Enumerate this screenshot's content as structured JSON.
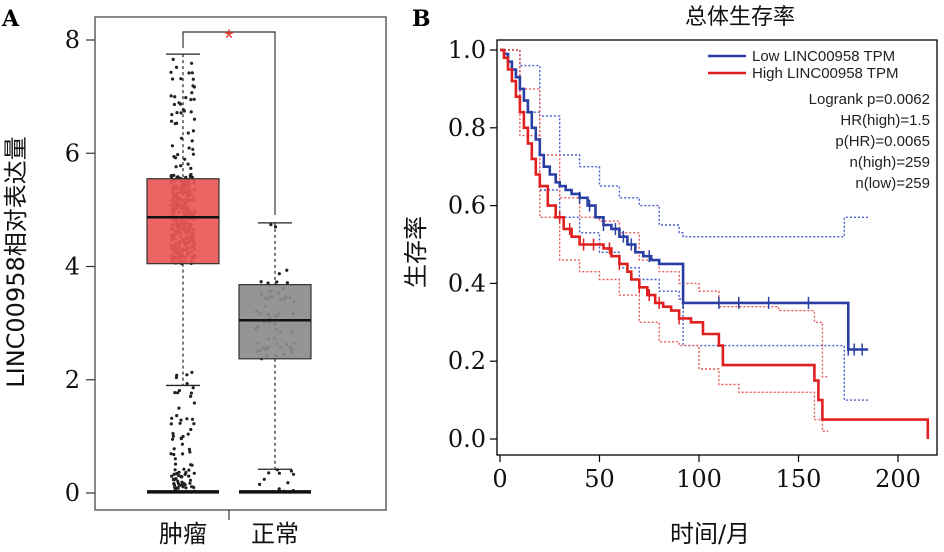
{
  "chart_data": [
    {
      "panel": "A",
      "type": "box",
      "ylabel": "LINC00958相对表达量",
      "ylim": [
        0,
        8.3
      ],
      "yticks": [
        0,
        2,
        4,
        6,
        8
      ],
      "categories": [
        "肿瘤",
        "正常"
      ],
      "colors": {
        "肿瘤": "#ea5858",
        "正常": "#8c8c8c"
      },
      "boxes": [
        {
          "name": "肿瘤",
          "min": 1.9,
          "q1": 4.05,
          "median": 4.87,
          "q3": 5.55,
          "max": 7.75
        },
        {
          "name": "正常",
          "min": 0.42,
          "q1": 2.37,
          "median": 3.05,
          "q3": 3.68,
          "max": 4.77
        }
      ],
      "significance": "*",
      "grid": false
    },
    {
      "panel": "B",
      "type": "line",
      "title": "总体生存率",
      "xlabel": "时间/月",
      "ylabel": "生存率",
      "xlim": [
        0,
        215
      ],
      "ylim": [
        0,
        1.0
      ],
      "xticks": [
        0,
        50,
        100,
        150,
        200
      ],
      "yticks": [
        0.0,
        0.2,
        0.4,
        0.6,
        0.8,
        1.0
      ],
      "legend": {
        "position": "top-right",
        "entries": [
          {
            "label": "Low LINC00958 TPM",
            "color": "#2a3fa3"
          },
          {
            "label": "High LINC00958 TPM",
            "color": "#e02020"
          }
        ]
      },
      "stats": [
        "Logrank p=0.0062",
        "HR(high)=1.5",
        "p(HR)=0.0065",
        "n(high)=259",
        "n(low)=259"
      ],
      "series": [
        {
          "name": "Low LINC00958 TPM",
          "color": "#2a3fa3",
          "x": [
            0,
            2,
            4,
            6,
            8,
            10,
            12,
            14,
            16,
            18,
            20,
            22,
            25,
            28,
            30,
            33,
            36,
            40,
            44,
            48,
            52,
            56,
            60,
            64,
            68,
            72,
            76,
            80,
            85,
            90,
            92,
            100,
            110,
            130,
            150,
            165,
            172,
            175,
            185
          ],
          "y": [
            1.0,
            0.99,
            0.97,
            0.95,
            0.93,
            0.9,
            0.87,
            0.84,
            0.8,
            0.77,
            0.73,
            0.7,
            0.68,
            0.66,
            0.65,
            0.64,
            0.63,
            0.62,
            0.6,
            0.57,
            0.55,
            0.54,
            0.52,
            0.5,
            0.48,
            0.47,
            0.46,
            0.45,
            0.45,
            0.45,
            0.35,
            0.35,
            0.35,
            0.35,
            0.35,
            0.35,
            0.35,
            0.23,
            0.23
          ]
        },
        {
          "name": "High LINC00958 TPM",
          "color": "#e02020",
          "x": [
            0,
            2,
            4,
            6,
            8,
            10,
            12,
            14,
            16,
            18,
            20,
            24,
            28,
            32,
            36,
            40,
            44,
            48,
            52,
            56,
            60,
            64,
            66,
            70,
            74,
            78,
            82,
            86,
            90,
            96,
            102,
            110,
            112,
            120,
            140,
            158,
            160,
            162,
            165,
            200,
            215
          ],
          "y": [
            1.0,
            0.98,
            0.95,
            0.92,
            0.88,
            0.84,
            0.8,
            0.76,
            0.72,
            0.68,
            0.65,
            0.6,
            0.57,
            0.54,
            0.52,
            0.5,
            0.5,
            0.5,
            0.49,
            0.47,
            0.45,
            0.43,
            0.41,
            0.39,
            0.37,
            0.35,
            0.34,
            0.33,
            0.31,
            0.3,
            0.27,
            0.24,
            0.19,
            0.19,
            0.19,
            0.15,
            0.1,
            0.05,
            0.05,
            0.05,
            0.0
          ]
        }
      ],
      "confidence_bands": [
        {
          "series": "Low LINC00958 TPM",
          "color": "#4a5ccc",
          "x": [
            0,
            10,
            20,
            30,
            40,
            50,
            60,
            70,
            80,
            90,
            92,
            100,
            170,
            173,
            175,
            185
          ],
          "upper": [
            1.0,
            0.96,
            0.83,
            0.73,
            0.7,
            0.65,
            0.62,
            0.6,
            0.55,
            0.53,
            0.52,
            0.52,
            0.52,
            0.57,
            0.57,
            0.57
          ],
          "lower": [
            1.0,
            0.84,
            0.64,
            0.57,
            0.53,
            0.48,
            0.44,
            0.41,
            0.38,
            0.36,
            0.24,
            0.24,
            0.24,
            0.1,
            0.1,
            0.1
          ]
        },
        {
          "series": "High LINC00958 TPM",
          "color": "#e85a5a",
          "x": [
            0,
            10,
            20,
            30,
            40,
            50,
            60,
            70,
            80,
            90,
            100,
            110,
            120,
            140,
            158,
            162,
            165
          ],
          "upper": [
            1.0,
            0.9,
            0.73,
            0.62,
            0.57,
            0.56,
            0.53,
            0.46,
            0.43,
            0.4,
            0.38,
            0.34,
            0.34,
            0.33,
            0.3,
            0.16,
            0.16
          ],
          "lower": [
            1.0,
            0.78,
            0.57,
            0.46,
            0.43,
            0.41,
            0.37,
            0.3,
            0.25,
            0.24,
            0.18,
            0.14,
            0.12,
            0.12,
            0.05,
            0.02,
            0.02
          ]
        }
      ],
      "censor_marks": [
        {
          "series": "Low LINC00958 TPM",
          "x": [
            40,
            45,
            52,
            58,
            62,
            66,
            75,
            92,
            110,
            120,
            135,
            155,
            175,
            178,
            182
          ]
        },
        {
          "series": "High LINC00958 TPM",
          "x": [
            30,
            35,
            42,
            47,
            55,
            60,
            70,
            75,
            80,
            90
          ]
        }
      ],
      "grid": false
    }
  ]
}
